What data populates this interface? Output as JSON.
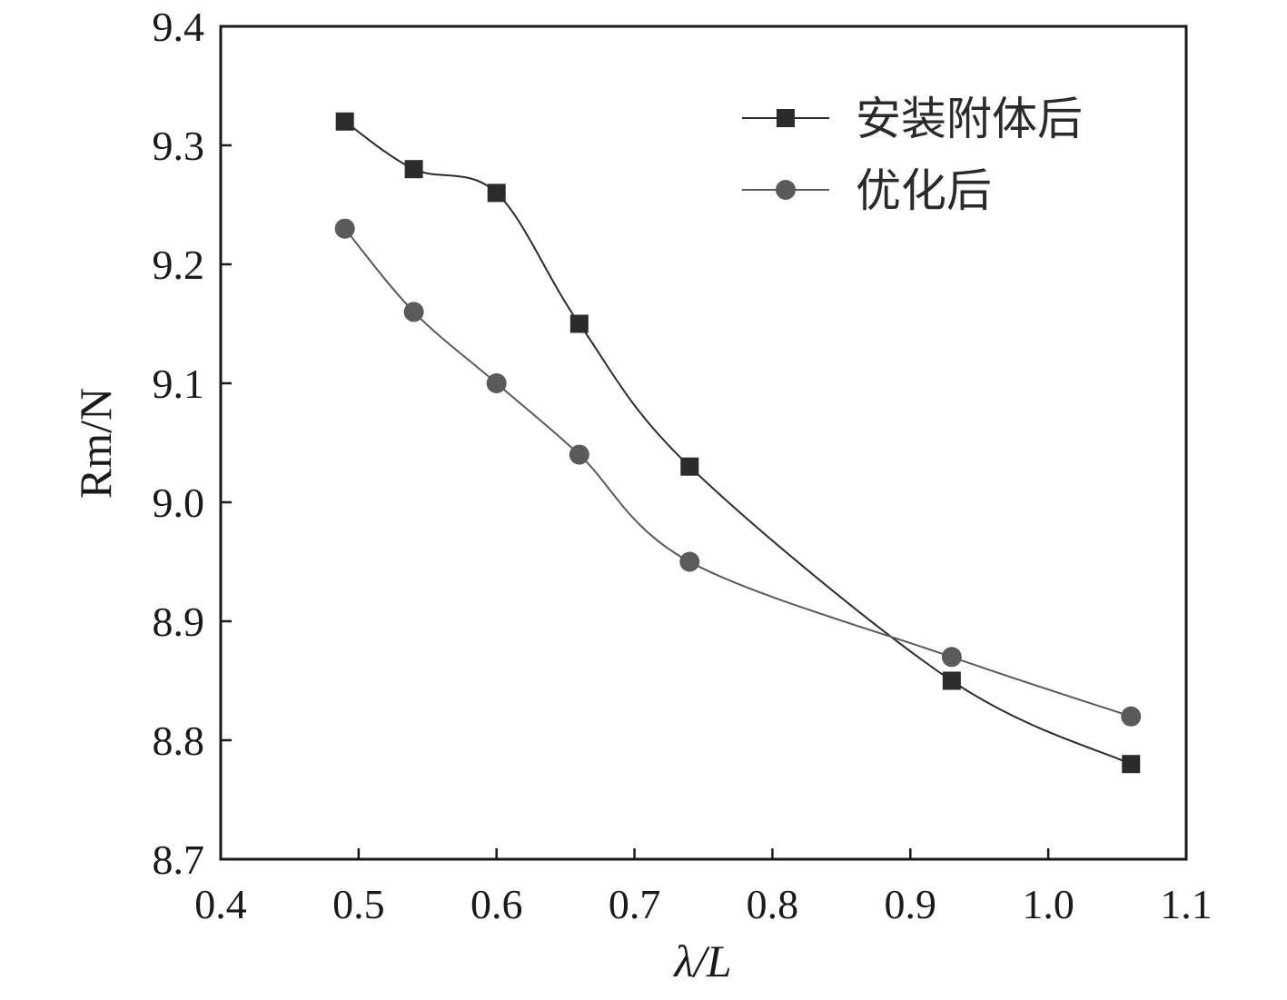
{
  "chart_data": {
    "type": "line",
    "title": "",
    "xlabel": "λ/L",
    "ylabel": "Rm/N",
    "xlim": [
      0.4,
      1.1
    ],
    "ylim": [
      8.7,
      9.4
    ],
    "xticks": [
      "0.4",
      "0.5",
      "0.6",
      "0.7",
      "0.8",
      "0.9",
      "1.0",
      "1.1"
    ],
    "yticks": [
      "8.7",
      "8.8",
      "8.9",
      "9.0",
      "9.1",
      "9.2",
      "9.3",
      "9.4"
    ],
    "grid": false,
    "legend_position": "top-right",
    "x": [
      0.49,
      0.54,
      0.6,
      0.66,
      0.74,
      0.93,
      1.06
    ],
    "series": [
      {
        "name": "安装附体后",
        "marker": "square",
        "color": "#2b2b2b",
        "values": [
          9.32,
          9.28,
          9.26,
          9.15,
          9.03,
          8.85,
          8.78
        ]
      },
      {
        "name": "优化后",
        "marker": "circle",
        "color": "#5a5a5a",
        "values": [
          9.23,
          9.16,
          9.1,
          9.04,
          8.95,
          8.87,
          8.82
        ]
      }
    ]
  }
}
